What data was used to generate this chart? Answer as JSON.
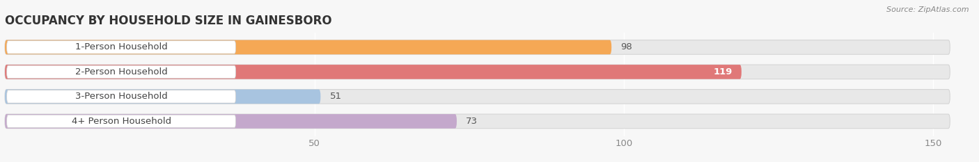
{
  "title": "OCCUPANCY BY HOUSEHOLD SIZE IN GAINESBORO",
  "source": "Source: ZipAtlas.com",
  "categories": [
    "1-Person Household",
    "2-Person Household",
    "3-Person Household",
    "4+ Person Household"
  ],
  "values": [
    98,
    119,
    51,
    73
  ],
  "bar_colors": [
    "#F5A855",
    "#E07878",
    "#A8C4E0",
    "#C4A8CC"
  ],
  "label_colors": [
    "#555555",
    "#ffffff",
    "#555555",
    "#555555"
  ],
  "xlim_max": 155,
  "xticks": [
    50,
    100,
    150
  ],
  "background_color": "#f7f7f7",
  "bar_bg_color": "#e8e8e8",
  "title_fontsize": 12,
  "tick_fontsize": 9.5,
  "label_fontsize": 9.5,
  "value_fontsize": 9.5
}
